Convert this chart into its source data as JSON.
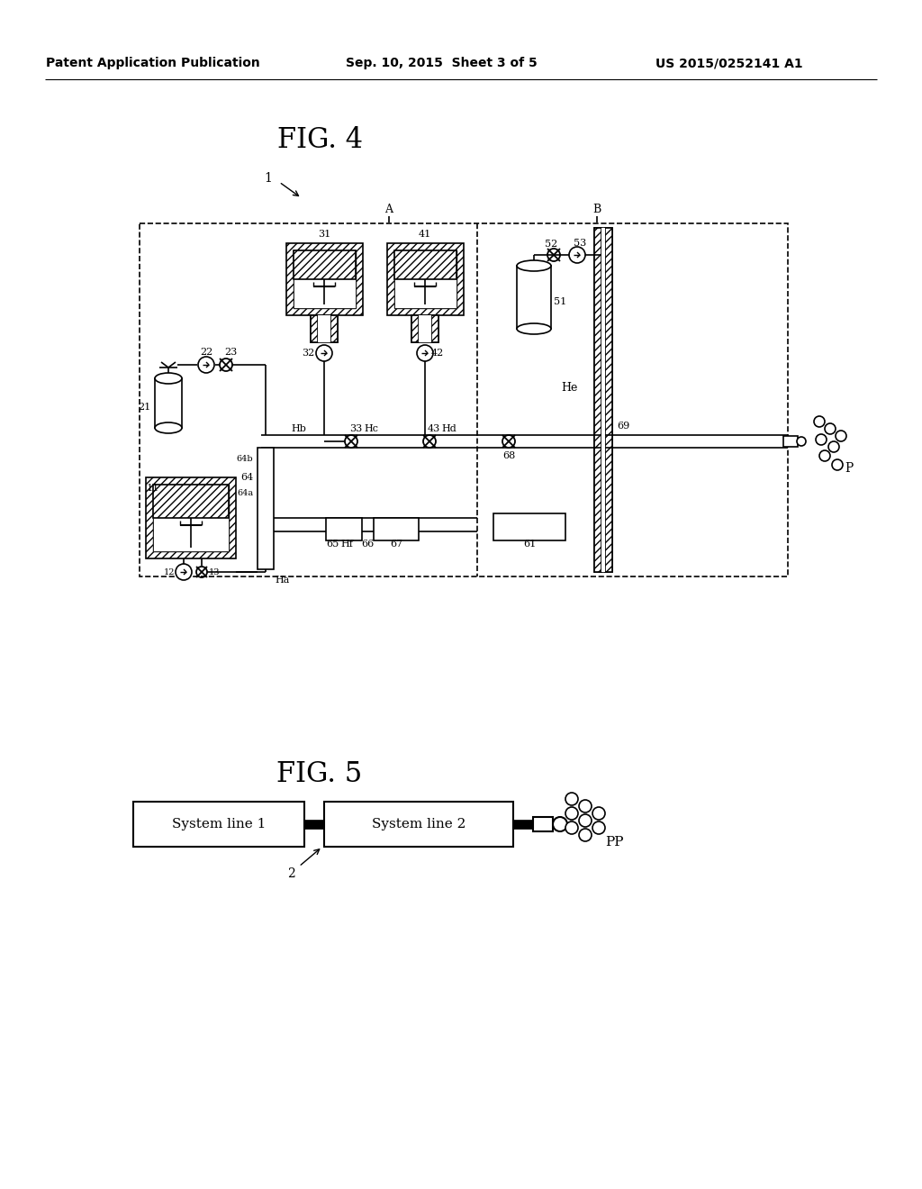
{
  "page_title_left": "Patent Application Publication",
  "page_title_center": "Sep. 10, 2015  Sheet 3 of 5",
  "page_title_right": "US 2015/0252141 A1",
  "fig4_title": "FIG. 4",
  "fig5_title": "FIG. 5",
  "bg_color": "#ffffff"
}
